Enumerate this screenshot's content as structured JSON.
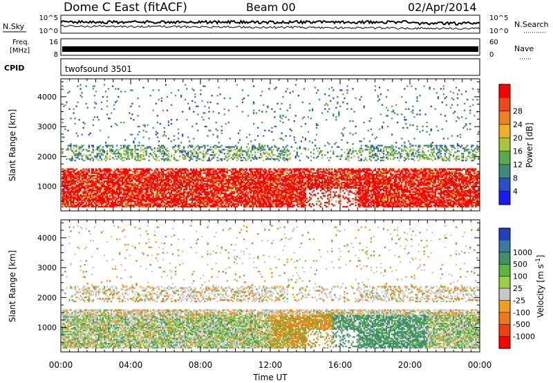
{
  "header": {
    "title": "Dome C East (fitACF)",
    "beam": "Beam 00",
    "date": "02/Apr/2014"
  },
  "nsky_panel": {
    "left_label": "N.Sky",
    "right_label": "N.Search",
    "left_ticks": [
      "10^5",
      "10^0"
    ],
    "right_ticks": [
      "10^5",
      "10^0"
    ]
  },
  "freq_panel": {
    "left_label_line1": "Freq.",
    "left_label_line2": "[MHz]",
    "right_label": "Nave",
    "left_ticks": [
      "16",
      "8"
    ],
    "right_ticks": [
      "60",
      "0"
    ]
  },
  "cpid_panel": {
    "label": "CPID",
    "program": "twofsound 3501"
  },
  "chart_data": [
    {
      "type": "heatmap",
      "title": "",
      "xlabel": "",
      "ylabel": "Slant Range [km]",
      "xlim": [
        0,
        24
      ],
      "ylim": [
        180,
        4600
      ],
      "yticks": [
        1000,
        2000,
        3000,
        4000
      ],
      "colorbar": {
        "label": "Power [dB]",
        "tick_labels": [
          "4",
          "8",
          "12",
          "16",
          "20",
          "24",
          "28"
        ],
        "tick_values": [
          4,
          8,
          12,
          16,
          20,
          24,
          28
        ],
        "range": [
          0,
          32
        ],
        "colors": [
          "#1a1aff",
          "#2a4fc4",
          "#3f8a7a",
          "#5aa84a",
          "#a8c83a",
          "#f0b020",
          "#f08020",
          "#f04818",
          "#ff0000"
        ]
      }
    },
    {
      "type": "heatmap",
      "title": "",
      "xlabel": "Time UT",
      "ylabel": "Slant Range [km]",
      "xlim": [
        0,
        24
      ],
      "ylim": [
        180,
        4600
      ],
      "yticks": [
        1000,
        2000,
        3000,
        4000
      ],
      "xtick_labels": [
        "00:00",
        "04:00",
        "08:00",
        "12:00",
        "16:00",
        "20:00",
        "00:00"
      ],
      "xtick_values": [
        0,
        4,
        8,
        12,
        16,
        20,
        24
      ],
      "colorbar": {
        "label": "Velocity [m s^-1]",
        "tick_labels": [
          "1000",
          "500",
          "100",
          "25",
          "-25",
          "-100",
          "-500",
          "-1000"
        ],
        "colors": [
          "#2040c0",
          "#3a7aa0",
          "#3f8f6a",
          "#5ab840",
          "#9ad040",
          "#c8c8c8",
          "#f0a020",
          "#f07818",
          "#f04010",
          "#ff0000"
        ]
      }
    }
  ]
}
